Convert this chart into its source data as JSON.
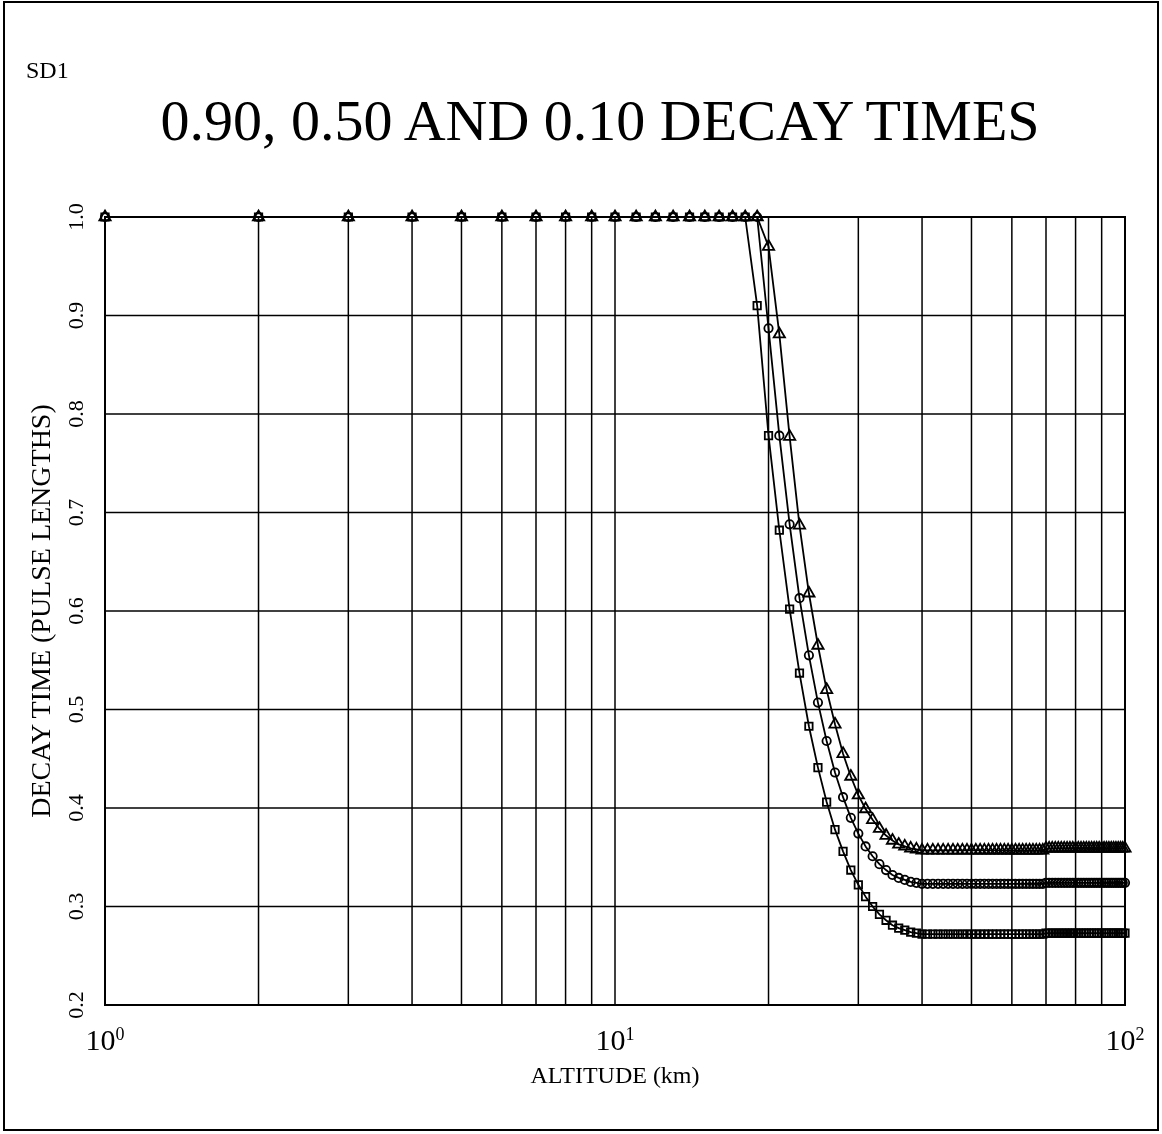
{
  "chart_data": {
    "type": "line",
    "title": "0.90, 0.50 AND 0.10 DECAY TIMES",
    "annotations": [
      "SD1"
    ],
    "xlabel": "ALTITUDE (km)",
    "ylabel": "DECAY TIME (PULSE LENGTHS)",
    "log": "x",
    "grid": true,
    "line_style": "solid",
    "xlim": [
      1,
      100
    ],
    "ylim": [
      0.2,
      1.0
    ],
    "xticks": [
      {
        "value": 1,
        "label": "10$^{0}$"
      },
      {
        "value": 2,
        "label": null
      },
      {
        "value": 3,
        "label": null
      },
      {
        "value": 4,
        "label": null
      },
      {
        "value": 5,
        "label": null
      },
      {
        "value": 6,
        "label": null
      },
      {
        "value": 7,
        "label": null
      },
      {
        "value": 8,
        "label": null
      },
      {
        "value": 9,
        "label": null
      },
      {
        "value": 10,
        "label": "10$^{1}$"
      },
      {
        "value": 20,
        "label": null
      },
      {
        "value": 30,
        "label": null
      },
      {
        "value": 40,
        "label": null
      },
      {
        "value": 50,
        "label": null
      },
      {
        "value": 60,
        "label": null
      },
      {
        "value": 70,
        "label": null
      },
      {
        "value": 80,
        "label": null
      },
      {
        "value": 90,
        "label": null
      },
      {
        "value": 100,
        "label": "10$^{2}$"
      }
    ],
    "yticks": [
      {
        "value": 0.2,
        "label": "0.2"
      },
      {
        "value": 0.3,
        "label": "0.3"
      },
      {
        "value": 0.4,
        "label": "0.4"
      },
      {
        "value": 0.5,
        "label": "0.5"
      },
      {
        "value": 0.6,
        "label": "0.6"
      },
      {
        "value": 0.7,
        "label": "0.7"
      },
      {
        "value": 0.8,
        "label": "0.8"
      },
      {
        "value": 0.9,
        "label": "0.9"
      },
      {
        "value": 1.0,
        "label": "1.0"
      }
    ],
    "x": [
      1,
      2,
      3,
      4,
      5,
      6,
      7,
      8,
      9,
      10,
      11,
      12,
      13,
      14,
      15,
      16,
      17,
      18,
      19,
      20,
      21,
      22,
      23,
      24,
      25,
      26,
      27,
      28,
      29,
      30,
      31,
      32,
      33,
      34,
      35,
      36,
      37,
      38,
      39,
      40,
      41,
      42,
      43,
      44,
      45,
      46,
      47,
      48,
      49,
      50,
      51,
      52,
      53,
      54,
      55,
      56,
      57,
      58,
      59,
      60,
      61,
      62,
      63,
      64,
      65,
      66,
      67,
      68,
      69,
      70,
      71,
      72,
      73,
      74,
      75,
      76,
      77,
      78,
      79,
      80,
      81,
      82,
      83,
      84,
      85,
      86,
      87,
      88,
      89,
      90,
      91,
      92,
      93,
      94,
      95,
      96,
      97,
      98,
      99,
      100
    ],
    "series": [
      {
        "color": "#000000",
        "marker": "square",
        "values": [
          1,
          1,
          1,
          1,
          1,
          1,
          1,
          1,
          1,
          1,
          1,
          1,
          1,
          1,
          1,
          1,
          1,
          1,
          0.91,
          0.778,
          0.682,
          0.602,
          0.537,
          0.483,
          0.441,
          0.406,
          0.378,
          0.356,
          0.337,
          0.322,
          0.31,
          0.3,
          0.292,
          0.286,
          0.281,
          0.278,
          0.276,
          0.274,
          0.273,
          0.272,
          0.272,
          0.272,
          0.272,
          0.272,
          0.272,
          0.272,
          0.272,
          0.272,
          0.272,
          0.272,
          0.272,
          0.272,
          0.272,
          0.272,
          0.272,
          0.272,
          0.272,
          0.272,
          0.272,
          0.272,
          0.272,
          0.272,
          0.272,
          0.272,
          0.272,
          0.272,
          0.272,
          0.272,
          0.272,
          0.273,
          0.273,
          0.273,
          0.273,
          0.273,
          0.273,
          0.273,
          0.273,
          0.273,
          0.273,
          0.273,
          0.273,
          0.273,
          0.273,
          0.273,
          0.273,
          0.273,
          0.273,
          0.273,
          0.273,
          0.273,
          0.273,
          0.273,
          0.273,
          0.273,
          0.273,
          0.273,
          0.273,
          0.273,
          0.273,
          0.273
        ]
      },
      {
        "color": "#000000",
        "marker": "circle",
        "values": [
          1,
          1,
          1,
          1,
          1,
          1,
          1,
          1,
          1,
          1,
          1,
          1,
          1,
          1,
          1,
          1,
          1,
          1,
          1,
          0.887,
          0.778,
          0.688,
          0.613,
          0.555,
          0.507,
          0.468,
          0.436,
          0.411,
          0.39,
          0.374,
          0.361,
          0.351,
          0.343,
          0.337,
          0.332,
          0.329,
          0.327,
          0.325,
          0.324,
          0.323,
          0.323,
          0.323,
          0.323,
          0.323,
          0.323,
          0.323,
          0.323,
          0.323,
          0.323,
          0.323,
          0.323,
          0.323,
          0.323,
          0.323,
          0.323,
          0.323,
          0.323,
          0.323,
          0.323,
          0.323,
          0.323,
          0.323,
          0.323,
          0.323,
          0.323,
          0.323,
          0.323,
          0.323,
          0.323,
          0.324,
          0.324,
          0.324,
          0.324,
          0.324,
          0.324,
          0.324,
          0.324,
          0.324,
          0.324,
          0.324,
          0.324,
          0.324,
          0.324,
          0.324,
          0.324,
          0.324,
          0.324,
          0.324,
          0.324,
          0.324,
          0.324,
          0.324,
          0.324,
          0.324,
          0.324,
          0.324,
          0.324,
          0.324,
          0.324,
          0.324
        ]
      },
      {
        "color": "#000000",
        "marker": "triangle",
        "values": [
          1,
          1,
          1,
          1,
          1,
          1,
          1,
          1,
          1,
          1,
          1,
          1,
          1,
          1,
          1,
          1,
          1,
          1,
          1,
          0.97,
          0.881,
          0.777,
          0.687,
          0.618,
          0.565,
          0.52,
          0.485,
          0.455,
          0.432,
          0.413,
          0.399,
          0.388,
          0.379,
          0.372,
          0.367,
          0.363,
          0.361,
          0.359,
          0.358,
          0.357,
          0.357,
          0.357,
          0.357,
          0.357,
          0.357,
          0.357,
          0.357,
          0.357,
          0.357,
          0.357,
          0.357,
          0.357,
          0.357,
          0.357,
          0.357,
          0.357,
          0.357,
          0.357,
          0.357,
          0.357,
          0.357,
          0.357,
          0.357,
          0.357,
          0.357,
          0.357,
          0.357,
          0.357,
          0.357,
          0.359,
          0.359,
          0.359,
          0.359,
          0.359,
          0.359,
          0.359,
          0.359,
          0.359,
          0.359,
          0.359,
          0.359,
          0.359,
          0.359,
          0.359,
          0.359,
          0.359,
          0.359,
          0.359,
          0.359,
          0.359,
          0.359,
          0.359,
          0.359,
          0.359,
          0.359,
          0.359,
          0.359,
          0.359,
          0.359,
          0.359
        ]
      }
    ]
  }
}
